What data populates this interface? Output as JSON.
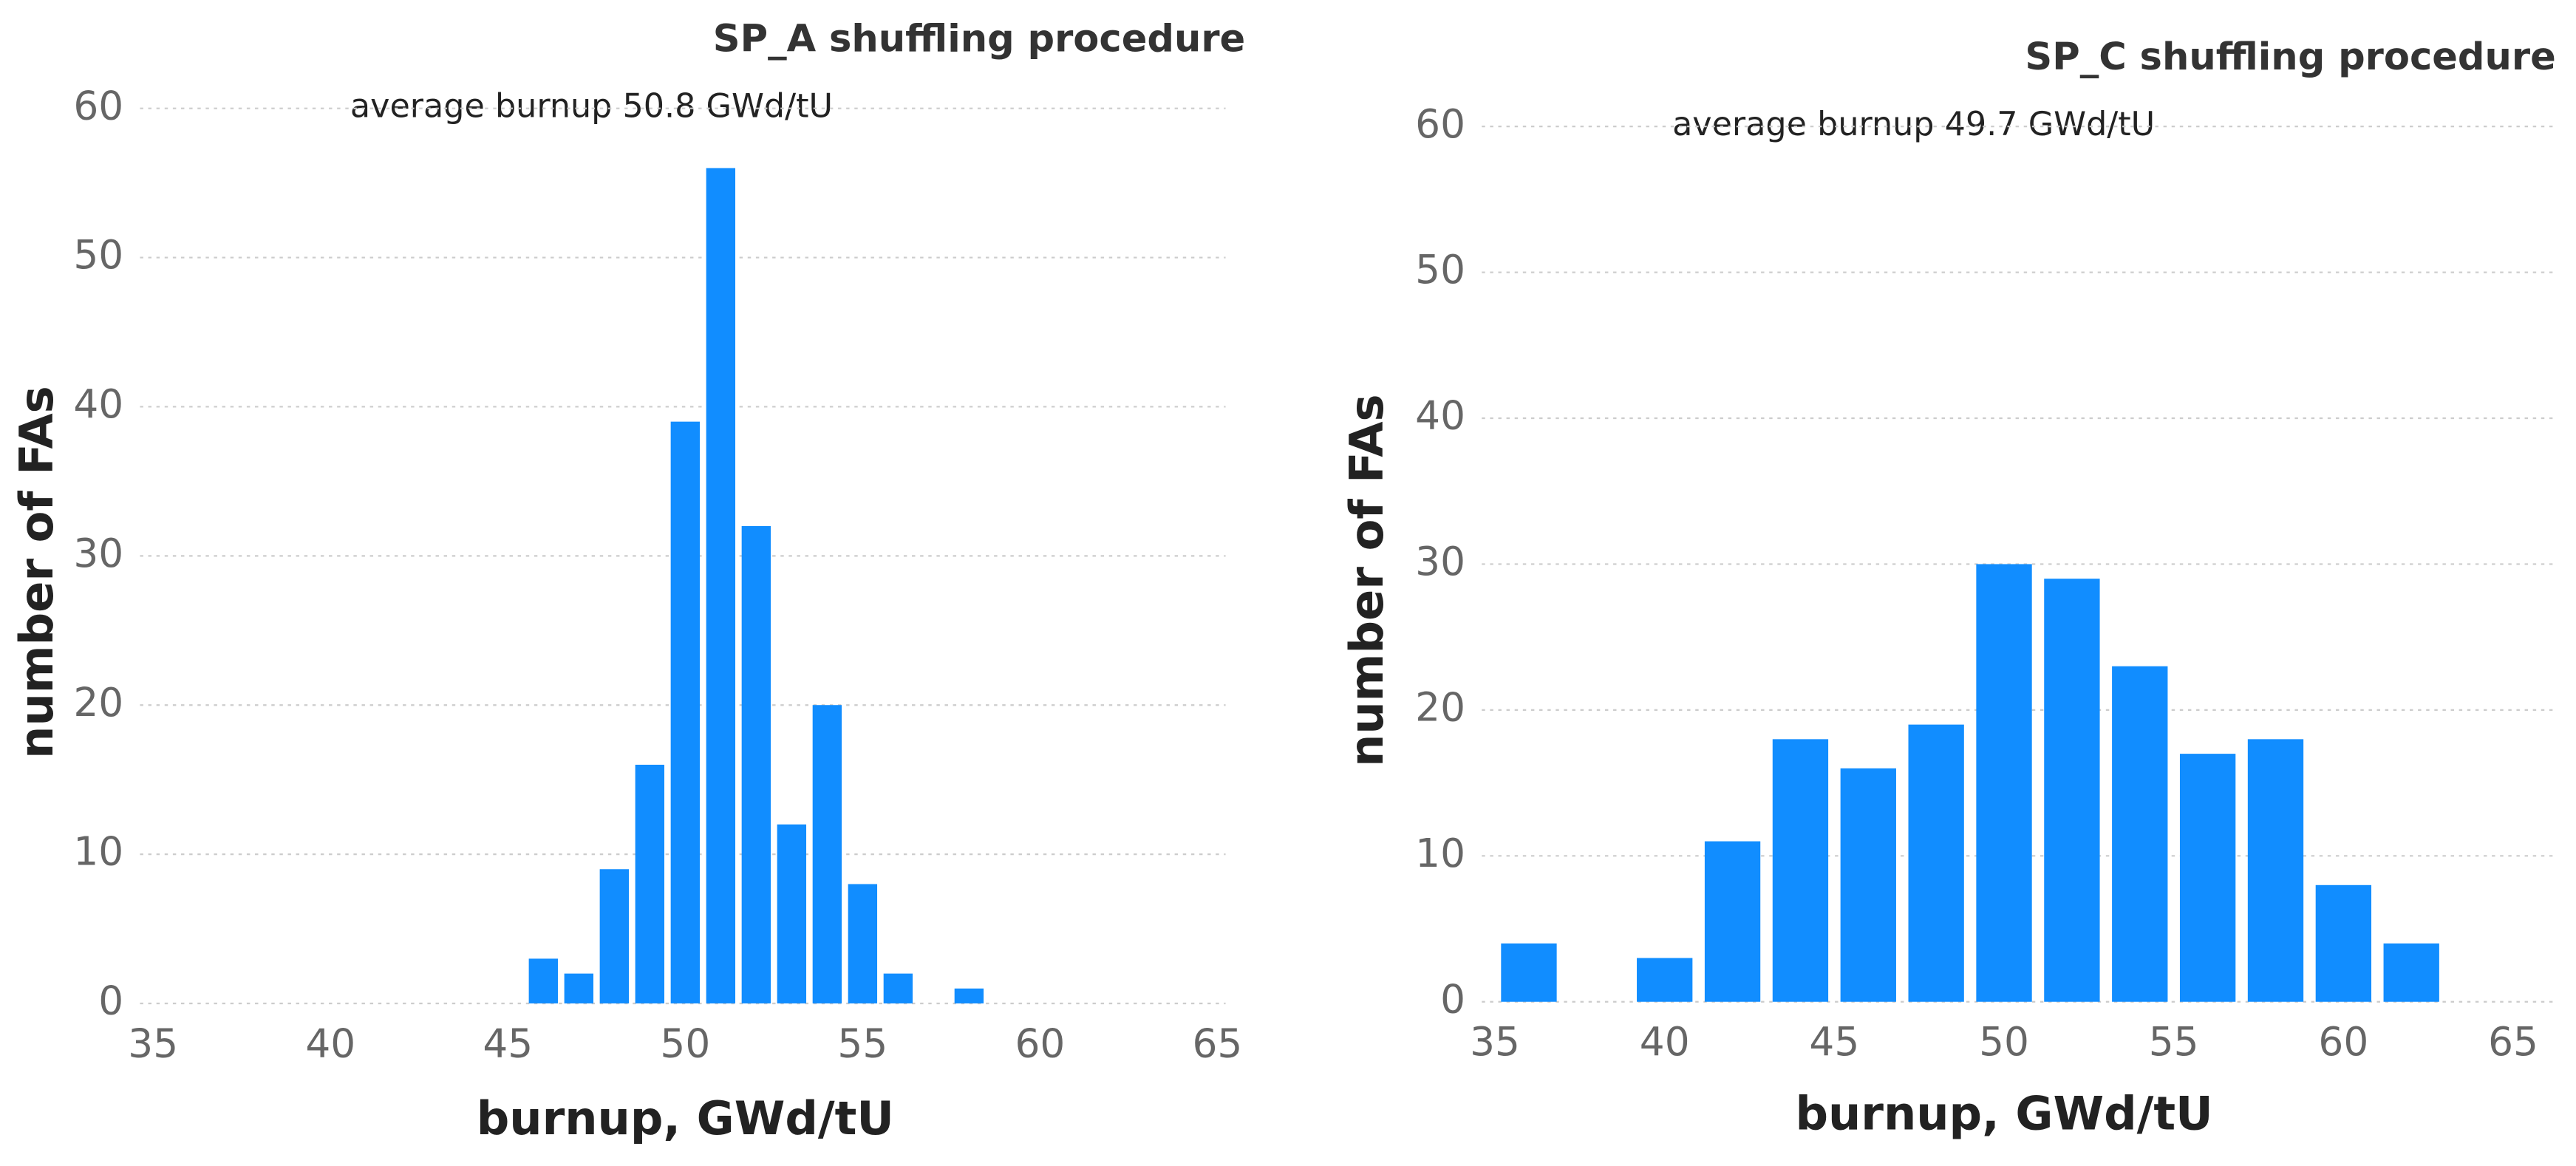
{
  "chart_data": [
    {
      "type": "bar",
      "title": "SP_A shuffling procedure",
      "annotation": "average burnup 50.8 GWd/tU",
      "x_label": "burnup, GWd/tU",
      "y_label": "number of FAs",
      "color": "#118dff",
      "grid": true,
      "x": [
        46,
        47,
        48,
        49,
        50,
        51,
        52,
        53,
        54,
        55,
        56,
        58
      ],
      "values": [
        3,
        2,
        9,
        16,
        39,
        56,
        32,
        12,
        20,
        8,
        2,
        1
      ],
      "xlim": [
        35,
        65
      ],
      "xticks": [
        35,
        40,
        45,
        50,
        55,
        60,
        65
      ],
      "ylim": [
        0,
        60
      ],
      "yticks": [
        0,
        10,
        20,
        30,
        40,
        50,
        60
      ]
    },
    {
      "type": "bar",
      "title": "SP_C shuffling procedure",
      "annotation": "average burnup 49.7 GWd/tU",
      "x_label": "burnup, GWd/tU",
      "y_label": "number of FAs",
      "color": "#118dff",
      "grid": true,
      "x": [
        36,
        40,
        42,
        44,
        46,
        48,
        50,
        52,
        54,
        56,
        58,
        60,
        62
      ],
      "values": [
        4,
        3,
        11,
        18,
        16,
        19,
        30,
        29,
        23,
        17,
        18,
        8,
        4
      ],
      "xlim": [
        35,
        65
      ],
      "xticks": [
        35,
        40,
        45,
        50,
        55,
        60,
        65
      ],
      "ylim": [
        0,
        60
      ],
      "yticks": [
        0,
        10,
        20,
        30,
        40,
        50,
        60
      ]
    }
  ]
}
